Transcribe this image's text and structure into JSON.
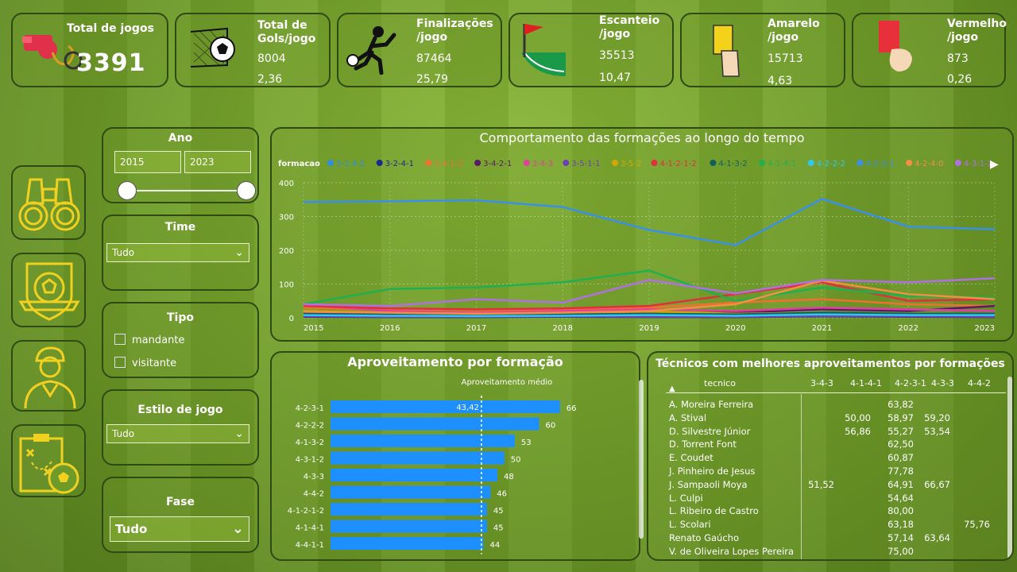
{
  "kpis": {
    "total_jogos": {
      "title": "Total de jogos",
      "value": "3391"
    },
    "gols": {
      "title1": "Total de",
      "title2": "Gols/jogo",
      "total": "8004",
      "per": "2,36"
    },
    "finalizacoes": {
      "title1": "Finalizações",
      "title2": "/jogo",
      "total": "87464",
      "per": "25,79"
    },
    "escanteio": {
      "title1": "Escanteio",
      "title2": "/jogo",
      "total": "35513",
      "per": "10,47"
    },
    "amarelo": {
      "title1": "Amarelo",
      "title2": "/jogo",
      "total": "15713",
      "per": "4,63"
    },
    "vermelho": {
      "title1": "Vermelho",
      "title2": "/jogo",
      "total": "873",
      "per": "0,26"
    }
  },
  "filters": {
    "ano": {
      "label": "Ano",
      "from": "2015",
      "to": "2023"
    },
    "time": {
      "label": "Time",
      "value": "Tudo"
    },
    "tipo": {
      "label": "Tipo",
      "options": [
        "mandante",
        "visitante"
      ]
    },
    "estilo": {
      "label": "Estilo de jogo",
      "value": "Tudo"
    },
    "fase": {
      "label": "Fase",
      "value": "Tudo"
    }
  },
  "nav_icons": [
    "binoculars-icon",
    "soccer-badge-icon",
    "coach-icon",
    "tactics-board-icon"
  ],
  "chart_data": [
    {
      "type": "line",
      "title": "Comportamento das formações ao longo do tempo",
      "legend_title": "formacao",
      "x": [
        2015,
        2016,
        2017,
        2018,
        2019,
        2020,
        2021,
        2022,
        2023
      ],
      "ylim": [
        0,
        400
      ],
      "yticks": [
        0,
        100,
        200,
        300,
        400
      ],
      "series": [
        {
          "name": "3-1-4-2",
          "color": "#2f8fe0",
          "values": [
            5,
            4,
            3,
            5,
            4,
            3,
            6,
            5,
            4
          ]
        },
        {
          "name": "3-2-4-1",
          "color": "#1a2a8a",
          "values": [
            3,
            2,
            2,
            3,
            2,
            2,
            4,
            3,
            2
          ]
        },
        {
          "name": "3-4-1-2",
          "color": "#f07030",
          "values": [
            30,
            22,
            18,
            25,
            30,
            45,
            55,
            40,
            35
          ]
        },
        {
          "name": "3-4-2-1",
          "color": "#5a1a6a",
          "values": [
            10,
            8,
            6,
            10,
            12,
            15,
            25,
            20,
            35
          ]
        },
        {
          "name": "3-4-3",
          "color": "#e040a0",
          "values": [
            38,
            20,
            15,
            20,
            25,
            20,
            30,
            25,
            20
          ]
        },
        {
          "name": "3-5-1-1",
          "color": "#7040b0",
          "values": [
            4,
            3,
            3,
            4,
            3,
            3,
            5,
            4,
            3
          ]
        },
        {
          "name": "3-5-2",
          "color": "#d4a800",
          "values": [
            20,
            15,
            12,
            15,
            18,
            12,
            15,
            12,
            10
          ]
        },
        {
          "name": "4-1-2-1-2",
          "color": "#e03040",
          "values": [
            35,
            28,
            25,
            28,
            35,
            70,
            105,
            50,
            55
          ]
        },
        {
          "name": "4-1-3-2",
          "color": "#106060",
          "values": [
            15,
            12,
            10,
            10,
            12,
            10,
            15,
            12,
            12
          ]
        },
        {
          "name": "4-1-4-1",
          "color": "#20b050",
          "values": [
            40,
            85,
            90,
            105,
            140,
            50,
            90,
            65,
            60
          ]
        },
        {
          "name": "4-2-2-2",
          "color": "#30c8f0",
          "values": [
            8,
            6,
            5,
            6,
            8,
            6,
            10,
            8,
            8
          ]
        },
        {
          "name": "4-2-3-1",
          "color": "#3a90e8",
          "values": [
            343,
            345,
            348,
            328,
            260,
            215,
            352,
            270,
            262
          ]
        },
        {
          "name": "4-2-4-0",
          "color": "#f09040",
          "values": [
            18,
            15,
            12,
            15,
            20,
            40,
            110,
            70,
            55
          ]
        },
        {
          "name": "4-3-1-2",
          "color": "#b070e0",
          "values": [
            40,
            35,
            55,
            45,
            112,
            72,
            112,
            105,
            117
          ]
        }
      ]
    },
    {
      "type": "bar",
      "title": "Aproveitamento por formação",
      "reference_label": "Aproveitamento médio",
      "reference_value": 43.42,
      "reference_text": "43,42",
      "categories": [
        "4-2-3-1",
        "4-2-2-2",
        "4-1-3-2",
        "4-3-1-2",
        "4-3-3",
        "4-4-2",
        "4-1-2-1-2",
        "4-1-4-1",
        "4-4-1-1"
      ],
      "values": [
        66,
        60,
        53,
        50,
        48,
        46,
        45,
        45,
        44
      ],
      "xlim": [
        0,
        80
      ],
      "xticks": [
        0,
        20,
        40,
        60,
        80
      ],
      "color": "#1e8fff"
    }
  ],
  "tecnicos": {
    "title": "Técnicos com melhores aproveitamentos por formações",
    "columns": [
      "tecnico",
      "3-4-3",
      "4-1-4-1",
      "4-2-3-1",
      "4-3-3",
      "4-4-2"
    ],
    "rows": [
      [
        "A. Moreira Ferreira",
        "",
        "",
        "63,82",
        "",
        ""
      ],
      [
        "A. Stival",
        "",
        "50,00",
        "58,97",
        "59,20",
        ""
      ],
      [
        "D. Silvestre Júnior",
        "",
        "56,86",
        "55,27",
        "53,54",
        ""
      ],
      [
        "D. Torrent Font",
        "",
        "",
        "62,50",
        "",
        ""
      ],
      [
        "E. Coudet",
        "",
        "",
        "60,87",
        "",
        ""
      ],
      [
        "J. Pinheiro de Jesus",
        "",
        "",
        "77,78",
        "",
        ""
      ],
      [
        "J. Sampaoli Moya",
        "51,52",
        "",
        "64,91",
        "66,67",
        ""
      ],
      [
        "L. Culpi",
        "",
        "",
        "54,64",
        "",
        ""
      ],
      [
        "L. Ribeiro de Castro",
        "",
        "",
        "80,00",
        "",
        ""
      ],
      [
        "L. Scolari",
        "",
        "",
        "63,18",
        "",
        "75,76"
      ],
      [
        "Renato Gaúcho",
        "",
        "",
        "57,14",
        "63,64",
        ""
      ],
      [
        "V. de Oliveira Lopes Pereira",
        "",
        "",
        "75,00",
        "",
        ""
      ]
    ]
  }
}
